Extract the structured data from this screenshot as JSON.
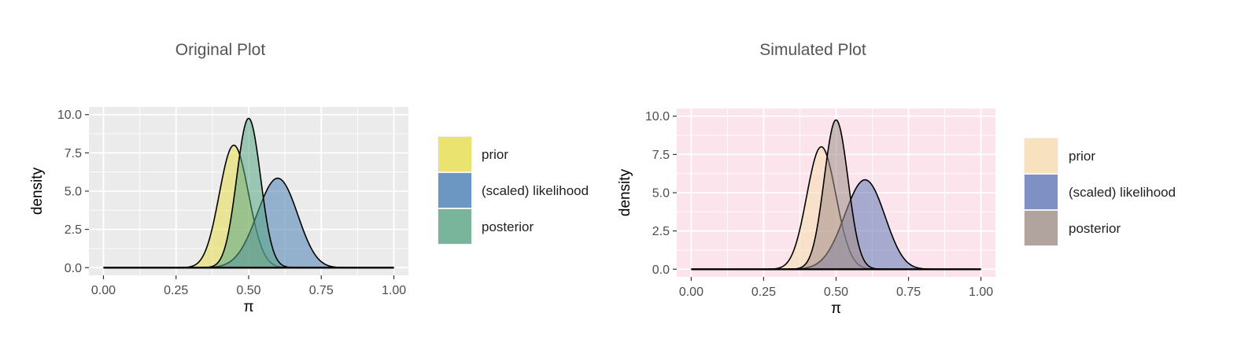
{
  "chart_data": [
    {
      "type": "area",
      "title": "Original Plot",
      "xlabel": "π",
      "ylabel": "density",
      "xlim": [
        0,
        1
      ],
      "ylim": [
        0,
        10
      ],
      "x_ticks": [
        "0.00",
        "0.25",
        "0.50",
        "0.75",
        "1.00"
      ],
      "y_ticks": [
        "0.0",
        "2.5",
        "5.0",
        "7.5",
        "10.0"
      ],
      "grid": true,
      "panel_background": "#ebebeb",
      "legend_position": "right",
      "series": [
        {
          "name": "prior",
          "distribution": "beta",
          "alpha": 45,
          "beta": 55,
          "peak": [
            0.45,
            8.0
          ],
          "color": "#e8df4f"
        },
        {
          "name": "(scaled) likelihood",
          "distribution": "beta",
          "alpha": 31,
          "beta": 21,
          "peak": [
            0.6,
            5.8
          ],
          "color": "#4a7fb5"
        },
        {
          "name": "posterior",
          "distribution": "beta",
          "alpha": 75,
          "beta": 75,
          "peak": [
            0.5,
            9.7
          ],
          "color": "#5aa585"
        }
      ]
    },
    {
      "type": "area",
      "title": "Simulated Plot",
      "xlabel": "π",
      "ylabel": "density",
      "xlim": [
        0,
        1
      ],
      "ylim": [
        0,
        10
      ],
      "x_ticks": [
        "0.00",
        "0.25",
        "0.50",
        "0.75",
        "1.00"
      ],
      "y_ticks": [
        "0.0",
        "2.5",
        "5.0",
        "7.5",
        "10.0"
      ],
      "grid": true,
      "panel_background": "#fbe4ec",
      "legend_position": "right",
      "series": [
        {
          "name": "prior",
          "distribution": "beta",
          "alpha": 45,
          "beta": 55,
          "peak": [
            0.45,
            8.0
          ],
          "color": "#f8dcb0"
        },
        {
          "name": "(scaled) likelihood",
          "distribution": "beta",
          "alpha": 31,
          "beta": 21,
          "peak": [
            0.6,
            5.8
          ],
          "color": "#6278b8"
        },
        {
          "name": "posterior",
          "distribution": "beta",
          "alpha": 75,
          "beta": 75,
          "peak": [
            0.5,
            9.7
          ],
          "color": "#a08e88"
        }
      ]
    }
  ]
}
